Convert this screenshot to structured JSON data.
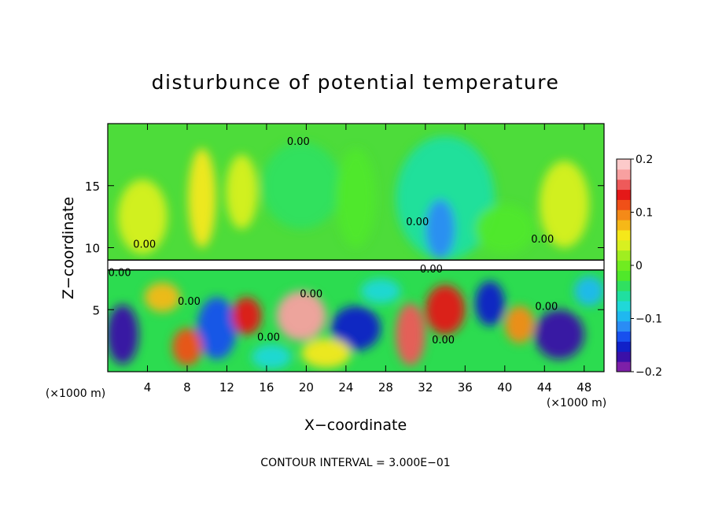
{
  "chart_data": {
    "type": "heatmap",
    "title": "disturbunce of potential temperature",
    "xlabel": "X−coordinate",
    "ylabel": "Z−coordinate",
    "x_unit_left": "(×1000 m)",
    "x_unit_right": "(×1000 m)",
    "footer": "CONTOUR INTERVAL = 3.000E−01",
    "xlim": [
      0,
      50
    ],
    "ylim": [
      0,
      20
    ],
    "x_ticks": [
      {
        "value": 4,
        "label": "4"
      },
      {
        "value": 8,
        "label": "8"
      },
      {
        "value": 12,
        "label": "12"
      },
      {
        "value": 16,
        "label": "16"
      },
      {
        "value": 20,
        "label": "20"
      },
      {
        "value": 24,
        "label": "24"
      },
      {
        "value": 28,
        "label": "28"
      },
      {
        "value": 32,
        "label": "32"
      },
      {
        "value": 36,
        "label": "36"
      },
      {
        "value": 40,
        "label": "40"
      },
      {
        "value": 44,
        "label": "44"
      },
      {
        "value": 48,
        "label": "48"
      }
    ],
    "y_ticks": [
      {
        "value": 5,
        "label": "5"
      },
      {
        "value": 10,
        "label": "10"
      },
      {
        "value": 15,
        "label": "15"
      }
    ],
    "contour_labels": [
      {
        "x": 19.2,
        "z": 18.3,
        "text": "0.00"
      },
      {
        "x": 31.2,
        "z": 11.8,
        "text": "0.00"
      },
      {
        "x": 43.8,
        "z": 10.4,
        "text": "0.00"
      },
      {
        "x": 3.7,
        "z": 10.0,
        "text": "0.00"
      },
      {
        "x": 20.5,
        "z": 6.0,
        "text": "0.00"
      },
      {
        "x": 32.6,
        "z": 8.0,
        "text": "0.00"
      },
      {
        "x": 8.2,
        "z": 5.4,
        "text": "0.00"
      },
      {
        "x": 33.8,
        "z": 2.3,
        "text": "0.00"
      },
      {
        "x": 44.2,
        "z": 5.0,
        "text": "0.00"
      },
      {
        "x": 16.2,
        "z": 2.5,
        "text": "0.00"
      },
      {
        "x": 1.2,
        "z": 7.7,
        "text": "0.00"
      }
    ],
    "colorbar": {
      "range": [
        -0.2,
        0.2
      ],
      "ticks": [
        {
          "value": 0.2,
          "label": "0.2"
        },
        {
          "value": 0.1,
          "label": "0.1"
        },
        {
          "value": 0,
          "label": "0"
        },
        {
          "value": -0.1,
          "label": "−0.1"
        },
        {
          "value": -0.2,
          "label": "−0.2"
        }
      ],
      "colors": [
        "#7d1fa8",
        "#3a10a8",
        "#1020c8",
        "#1850ee",
        "#2a8cf5",
        "#1fb8f0",
        "#20d8d8",
        "#20dfa0",
        "#30e060",
        "#50e82a",
        "#70ec20",
        "#a0ee20",
        "#d8f020",
        "#f5e81a",
        "#f6b818",
        "#f48a18",
        "#f05018",
        "#e41818",
        "#ee5a5a",
        "#f8a0a0",
        "#fccaca"
      ]
    },
    "field": {
      "upper_background": "#4ddc3a",
      "lower_background": "#2cdc50",
      "band_z": [
        8.2,
        9.0
      ],
      "upper_blobs": [
        {
          "x": 19.5,
          "z": 15.0,
          "rx": 4.0,
          "rz": 3.5,
          "value": -0.05
        },
        {
          "x": 34.0,
          "z": 14.0,
          "rx": 5.0,
          "rz": 5.0,
          "value": -0.06
        },
        {
          "x": 33.5,
          "z": 11.5,
          "rx": 1.5,
          "rz": 2.4,
          "value": -0.12
        },
        {
          "x": 25.0,
          "z": 14.0,
          "rx": 2.0,
          "rz": 4.0,
          "value": -0.02
        },
        {
          "x": 9.5,
          "z": 14.0,
          "rx": 1.4,
          "rz": 4.0,
          "value": 0.05
        },
        {
          "x": 3.5,
          "z": 12.5,
          "rx": 2.5,
          "rz": 3.0,
          "value": 0.04
        },
        {
          "x": 13.5,
          "z": 14.5,
          "rx": 1.6,
          "rz": 3.0,
          "value": 0.03
        },
        {
          "x": 46.0,
          "z": 13.5,
          "rx": 2.5,
          "rz": 3.5,
          "value": 0.03
        },
        {
          "x": 40.0,
          "z": 11.5,
          "rx": 3.0,
          "rz": 2.0,
          "value": -0.03
        }
      ],
      "lower_blobs": [
        {
          "x": 1.5,
          "z": 3.0,
          "rx": 1.6,
          "rz": 2.4,
          "value": -0.18
        },
        {
          "x": 11.0,
          "z": 3.5,
          "rx": 2.0,
          "rz": 2.5,
          "value": -0.15
        },
        {
          "x": 14.0,
          "z": 4.5,
          "rx": 1.5,
          "rz": 1.5,
          "value": 0.15
        },
        {
          "x": 19.5,
          "z": 4.5,
          "rx": 2.5,
          "rz": 2.0,
          "value": 0.18
        },
        {
          "x": 25.0,
          "z": 3.5,
          "rx": 2.5,
          "rz": 1.8,
          "value": -0.16
        },
        {
          "x": 30.5,
          "z": 3.0,
          "rx": 1.5,
          "rz": 2.5,
          "value": 0.16
        },
        {
          "x": 34.0,
          "z": 5.0,
          "rx": 2.0,
          "rz": 2.0,
          "value": 0.13
        },
        {
          "x": 38.5,
          "z": 5.5,
          "rx": 1.5,
          "rz": 1.8,
          "value": -0.17
        },
        {
          "x": 45.5,
          "z": 3.0,
          "rx": 2.5,
          "rz": 2.0,
          "value": -0.19
        },
        {
          "x": 8.0,
          "z": 2.0,
          "rx": 1.5,
          "rz": 1.5,
          "value": 0.12
        },
        {
          "x": 22.0,
          "z": 1.5,
          "rx": 2.5,
          "rz": 1.2,
          "value": 0.06
        },
        {
          "x": 48.5,
          "z": 6.5,
          "rx": 1.5,
          "rz": 1.2,
          "value": -0.1
        },
        {
          "x": 5.5,
          "z": 6.0,
          "rx": 1.8,
          "rz": 1.2,
          "value": 0.08
        },
        {
          "x": 27.5,
          "z": 6.5,
          "rx": 2.0,
          "rz": 1.0,
          "value": -0.09
        },
        {
          "x": 41.5,
          "z": 3.8,
          "rx": 1.5,
          "rz": 1.5,
          "value": 0.1
        },
        {
          "x": 16.5,
          "z": 1.2,
          "rx": 2.0,
          "rz": 1.0,
          "value": -0.08
        }
      ]
    }
  }
}
